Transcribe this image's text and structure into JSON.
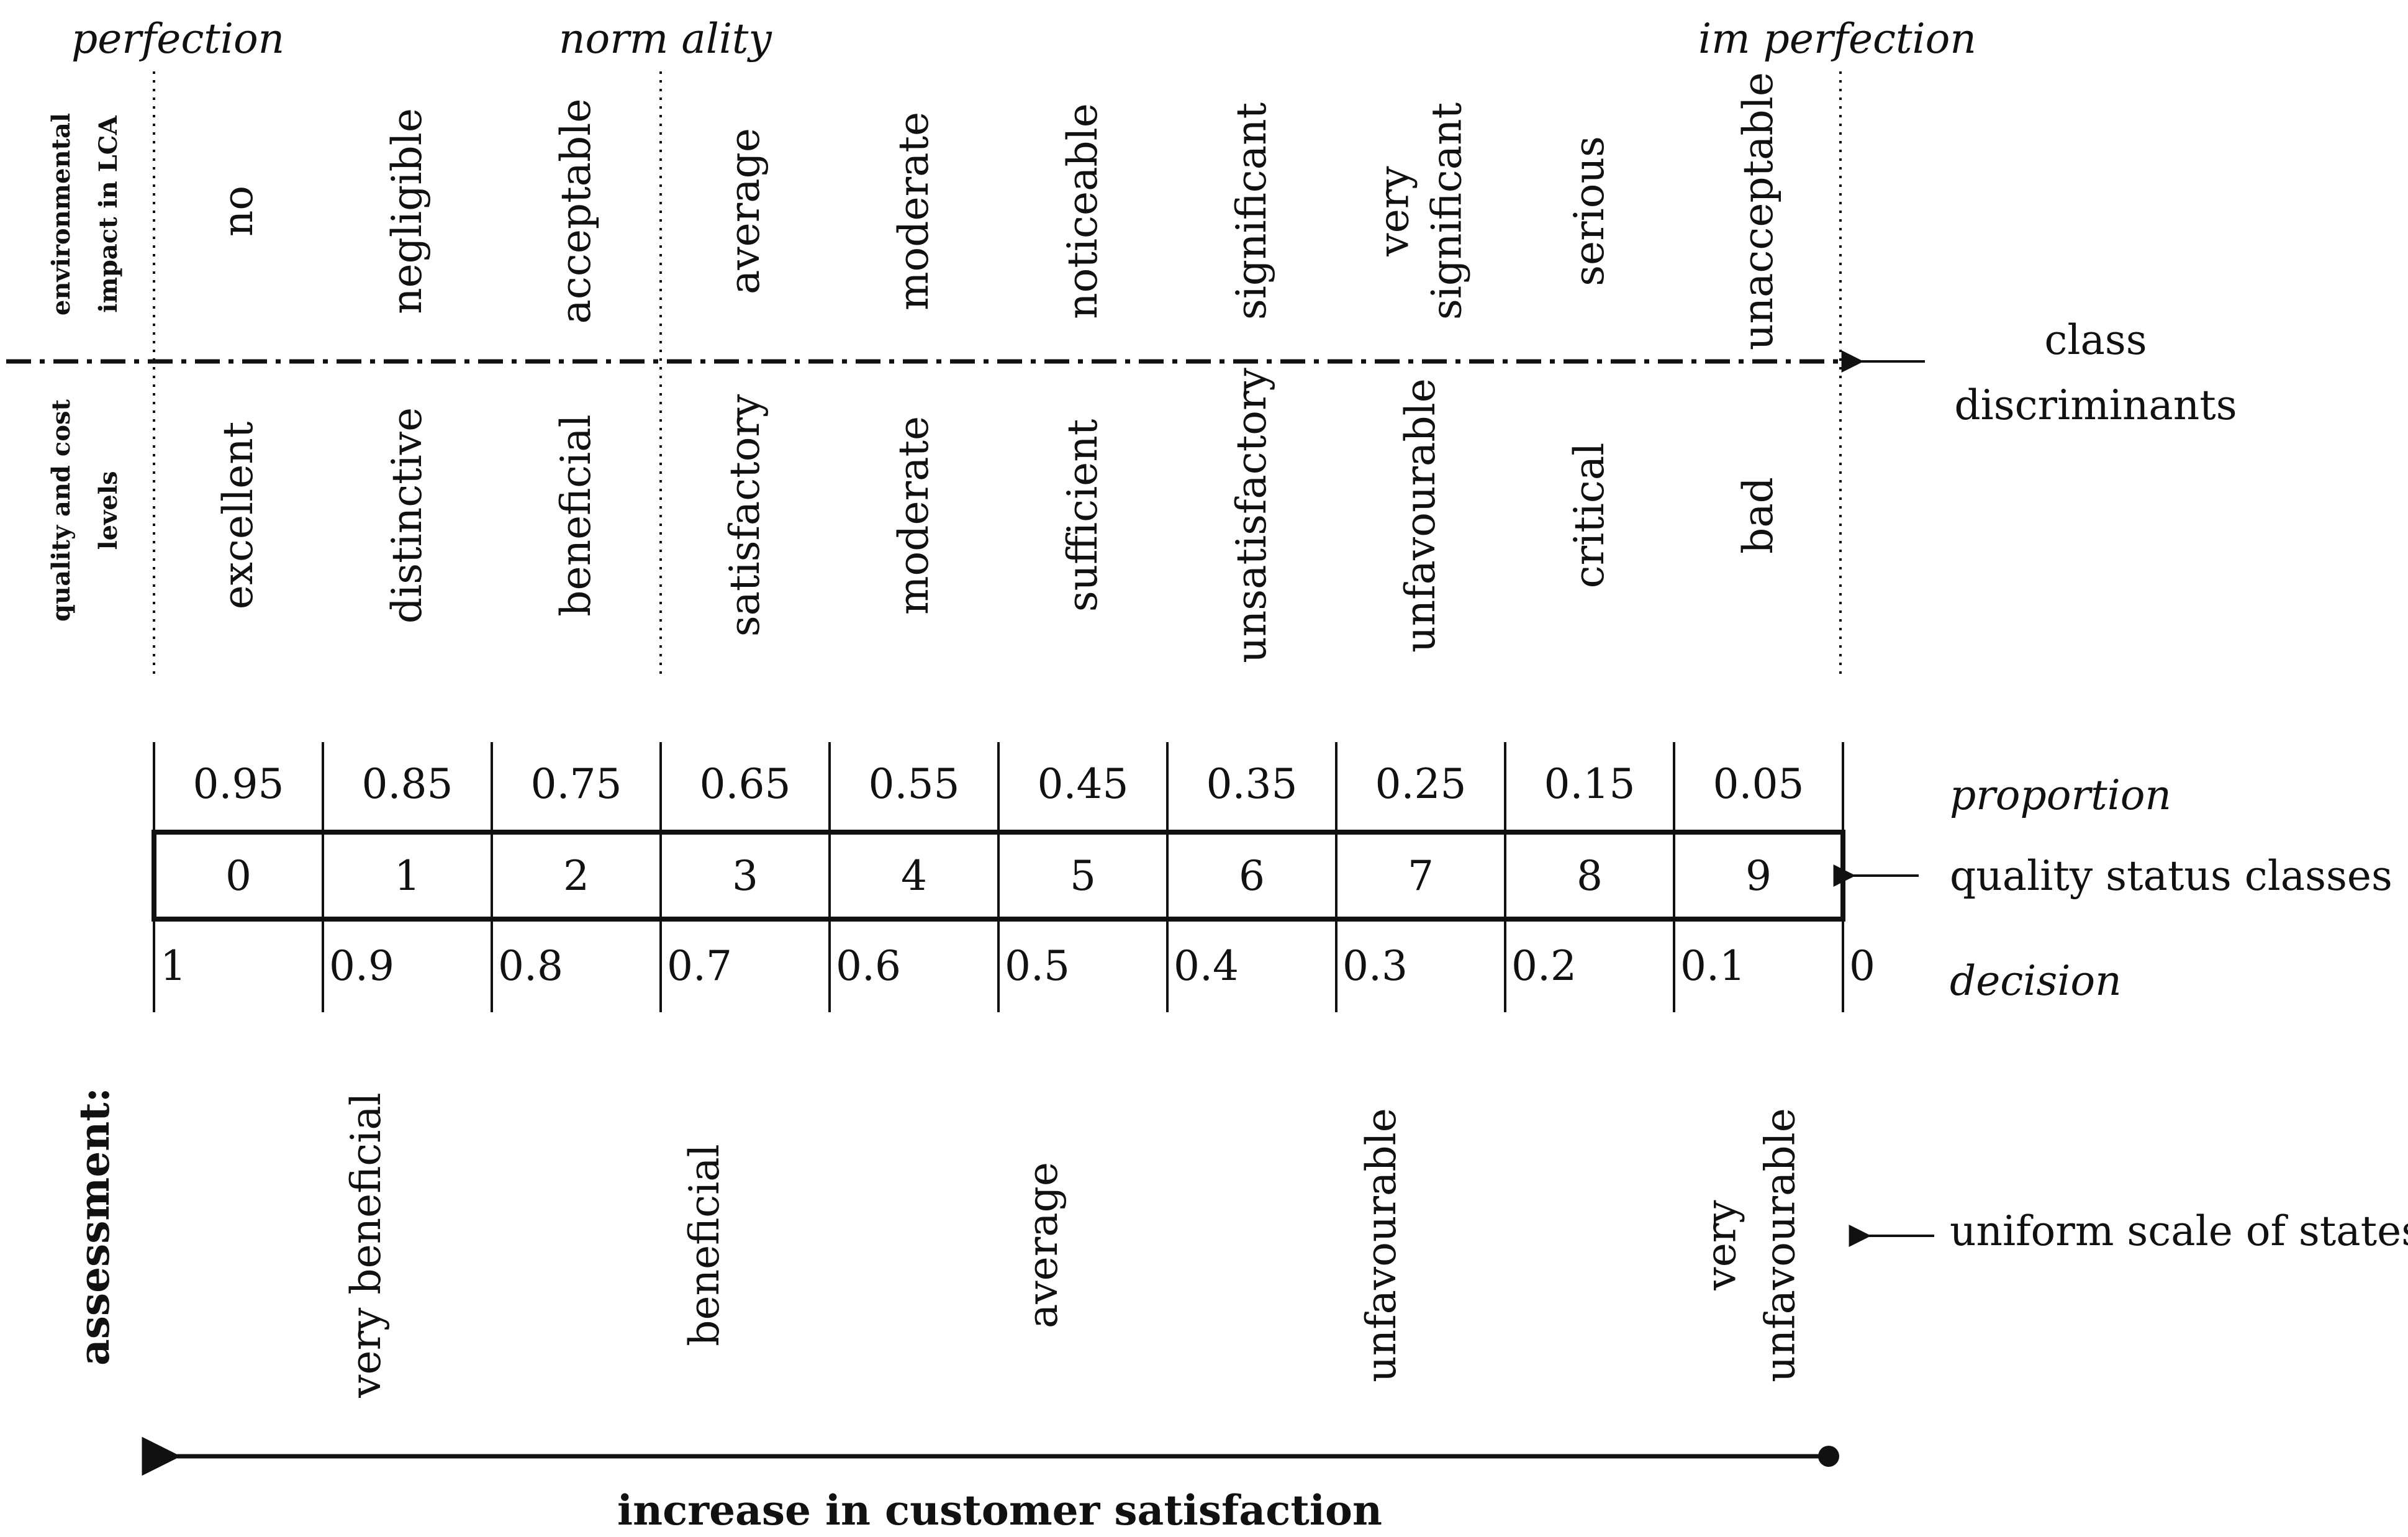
{
  "header": {
    "perfection": "perfection",
    "normality": "norm ality",
    "imperfection": "im perfection"
  },
  "row_labels": {
    "env_line1": "environmental",
    "env_line2": "impact in LCA",
    "qc_line1": "quality and cost",
    "qc_line2": "levels"
  },
  "env_impact": [
    [
      "no"
    ],
    [
      "negligible"
    ],
    [
      "acceptable"
    ],
    [
      "average"
    ],
    [
      "moderate"
    ],
    [
      "noticeable"
    ],
    [
      "significant"
    ],
    [
      "very",
      "significant"
    ],
    [
      "serious"
    ],
    [
      "unacceptable"
    ]
  ],
  "quality_levels": [
    "excellent",
    "distinctive",
    "beneficial",
    "satisfactory",
    "moderate",
    "sufficient",
    "unsatisfactory",
    "unfavourable",
    "critical",
    "bad"
  ],
  "class_discriminants": {
    "line1": "class",
    "line2": "discriminants"
  },
  "proportion": [
    "0.95",
    "0.85",
    "0.75",
    "0.65",
    "0.55",
    "0.45",
    "0.35",
    "0.25",
    "0.15",
    "0.05"
  ],
  "classes": [
    "0",
    "1",
    "2",
    "3",
    "4",
    "5",
    "6",
    "7",
    "8",
    "9"
  ],
  "decision": [
    "1",
    "0.9",
    "0.8",
    "0.7",
    "0.6",
    "0.5",
    "0.4",
    "0.3",
    "0.2",
    "0.1",
    "0"
  ],
  "labels": {
    "proportion": "proportion",
    "quality_status_classes": "quality status classes",
    "decision": "decision",
    "uniform_scale": "uniform scale of states",
    "assessment": "assessment:",
    "increase": "increase in customer satisfaction"
  },
  "assessment_states": [
    [
      "very beneficial"
    ],
    [
      "beneficial"
    ],
    [
      "average"
    ],
    [
      "unfavourable"
    ],
    [
      "very",
      "unfavourable"
    ]
  ]
}
